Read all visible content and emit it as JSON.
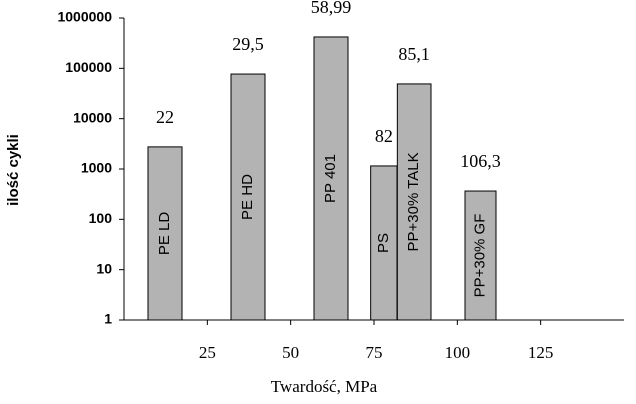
{
  "chart_data": {
    "type": "bar",
    "names": [
      "PE LD",
      "PE HD",
      "PP 401",
      "PS",
      "PP+30% TALK",
      "PP+30% GF"
    ],
    "hardness_labels": [
      "22",
      "29,5",
      "58,99",
      "82",
      "85,1",
      "106,3"
    ],
    "x_start": [
      7.2,
      32.1,
      57,
      74,
      82,
      102.3
    ],
    "x_end": [
      17.4,
      42.3,
      67.2,
      81.9,
      92.1,
      111.6
    ],
    "values": [
      2750,
      77000,
      420000,
      1150,
      49000,
      365
    ],
    "color": "#b3b3b3",
    "xlabel": "Twardość, MPa",
    "ylabel": "ilość cykli",
    "xlim": [
      0,
      150
    ],
    "xticks": [
      25,
      50,
      75,
      100,
      125
    ],
    "ylim": [
      1,
      1000000
    ],
    "yticks": [
      1,
      10,
      100,
      1000,
      10000,
      100000,
      1000000
    ],
    "log_y": true,
    "grid": false
  }
}
